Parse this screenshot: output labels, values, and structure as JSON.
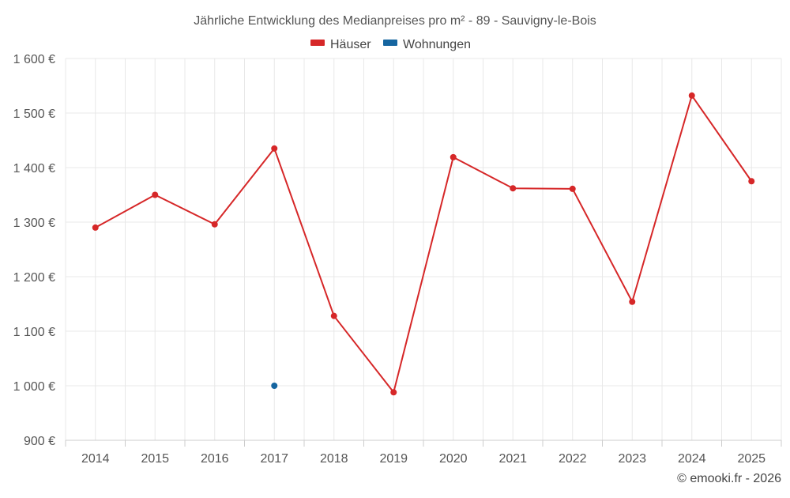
{
  "chart_data": {
    "type": "line",
    "title": "Jährliche Entwicklung des Medianpreises pro m² - 89 - Sauvigny-le-Bois",
    "xlabel": "",
    "ylabel": "",
    "categories": [
      "2014",
      "2015",
      "2016",
      "2017",
      "2018",
      "2019",
      "2020",
      "2021",
      "2022",
      "2023",
      "2024",
      "2025"
    ],
    "ylim": [
      900,
      1600
    ],
    "yticks": [
      900,
      1000,
      1100,
      1200,
      1300,
      1400,
      1500,
      1600
    ],
    "ytick_labels": [
      "900 €",
      "1 000 €",
      "1 100 €",
      "1 200 €",
      "1 300 €",
      "1 400 €",
      "1 500 €",
      "1 600 €"
    ],
    "grid": true,
    "legend_position": "top-center",
    "series": [
      {
        "name": "Häuser",
        "color": "#d62728",
        "values": [
          1290,
          1350,
          1296,
          1435,
          1128,
          988,
          1419,
          1362,
          1361,
          1154,
          1532,
          1375
        ]
      },
      {
        "name": "Wohnungen",
        "color": "#1565a0",
        "values": [
          null,
          null,
          null,
          1000,
          null,
          null,
          null,
          null,
          null,
          null,
          null,
          null
        ]
      }
    ],
    "credit": "© emooki.fr - 2026"
  }
}
